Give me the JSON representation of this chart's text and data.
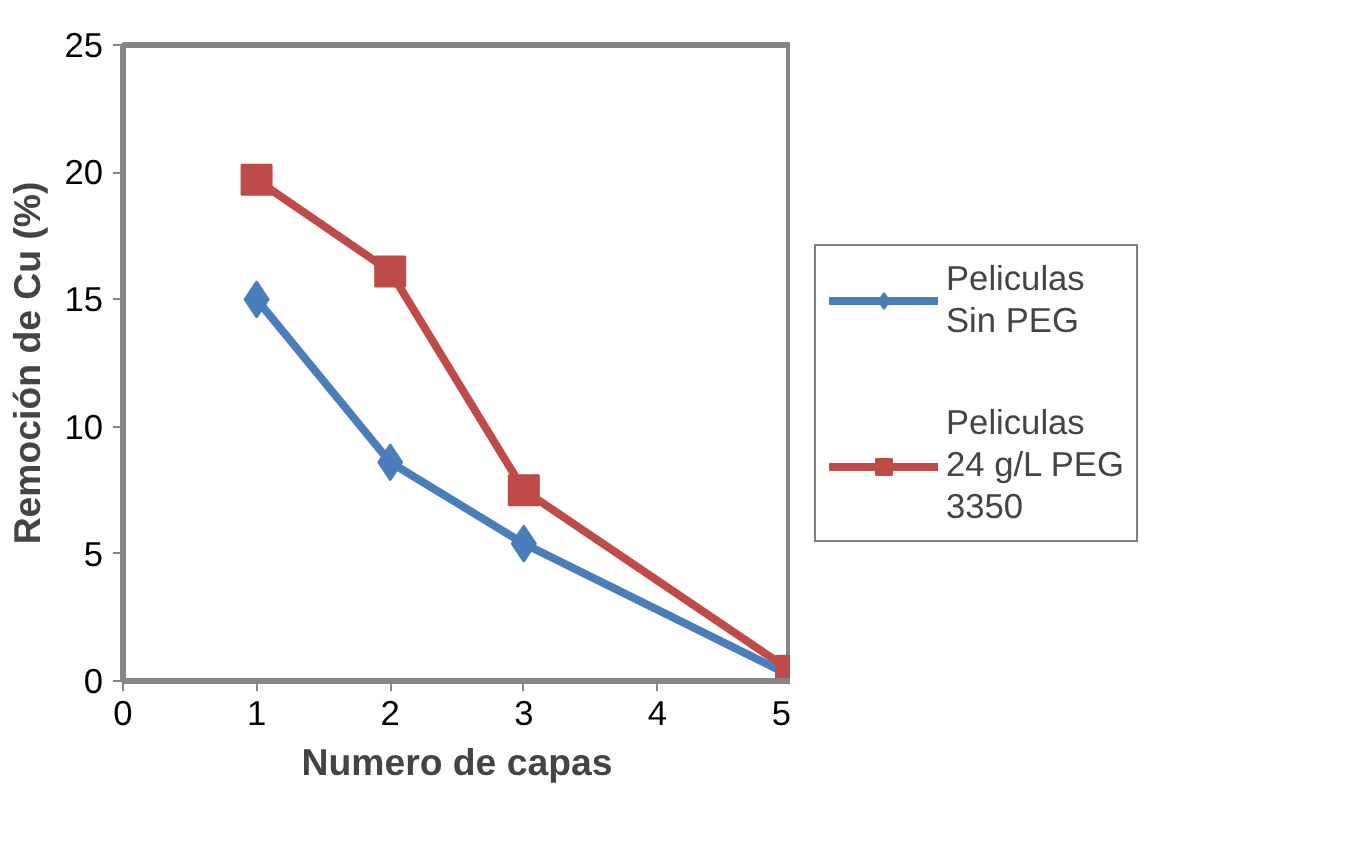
{
  "chart_data": {
    "type": "line",
    "xlabel": "Numero de capas",
    "ylabel": "Remoción de Cu (%)",
    "xlim": [
      0,
      5
    ],
    "ylim": [
      0,
      25
    ],
    "xticks": [
      0,
      1,
      2,
      3,
      4,
      5
    ],
    "yticks": [
      0,
      5,
      10,
      15,
      20,
      25
    ],
    "grid": false,
    "legend": "right",
    "line_style": "solid",
    "series": [
      {
        "name": "Peliculas Sin PEG",
        "color": "#4a7ebb",
        "marker": "diamond",
        "x": [
          1,
          2,
          3,
          5
        ],
        "values": [
          15,
          8.6,
          5.4,
          0.2
        ]
      },
      {
        "name": "Peliculas 24 g/L PEG 3350",
        "color": "#be4b48",
        "marker": "square",
        "x": [
          1,
          2,
          3,
          5
        ],
        "values": [
          19.7,
          16.1,
          7.5,
          0.4
        ]
      }
    ]
  }
}
